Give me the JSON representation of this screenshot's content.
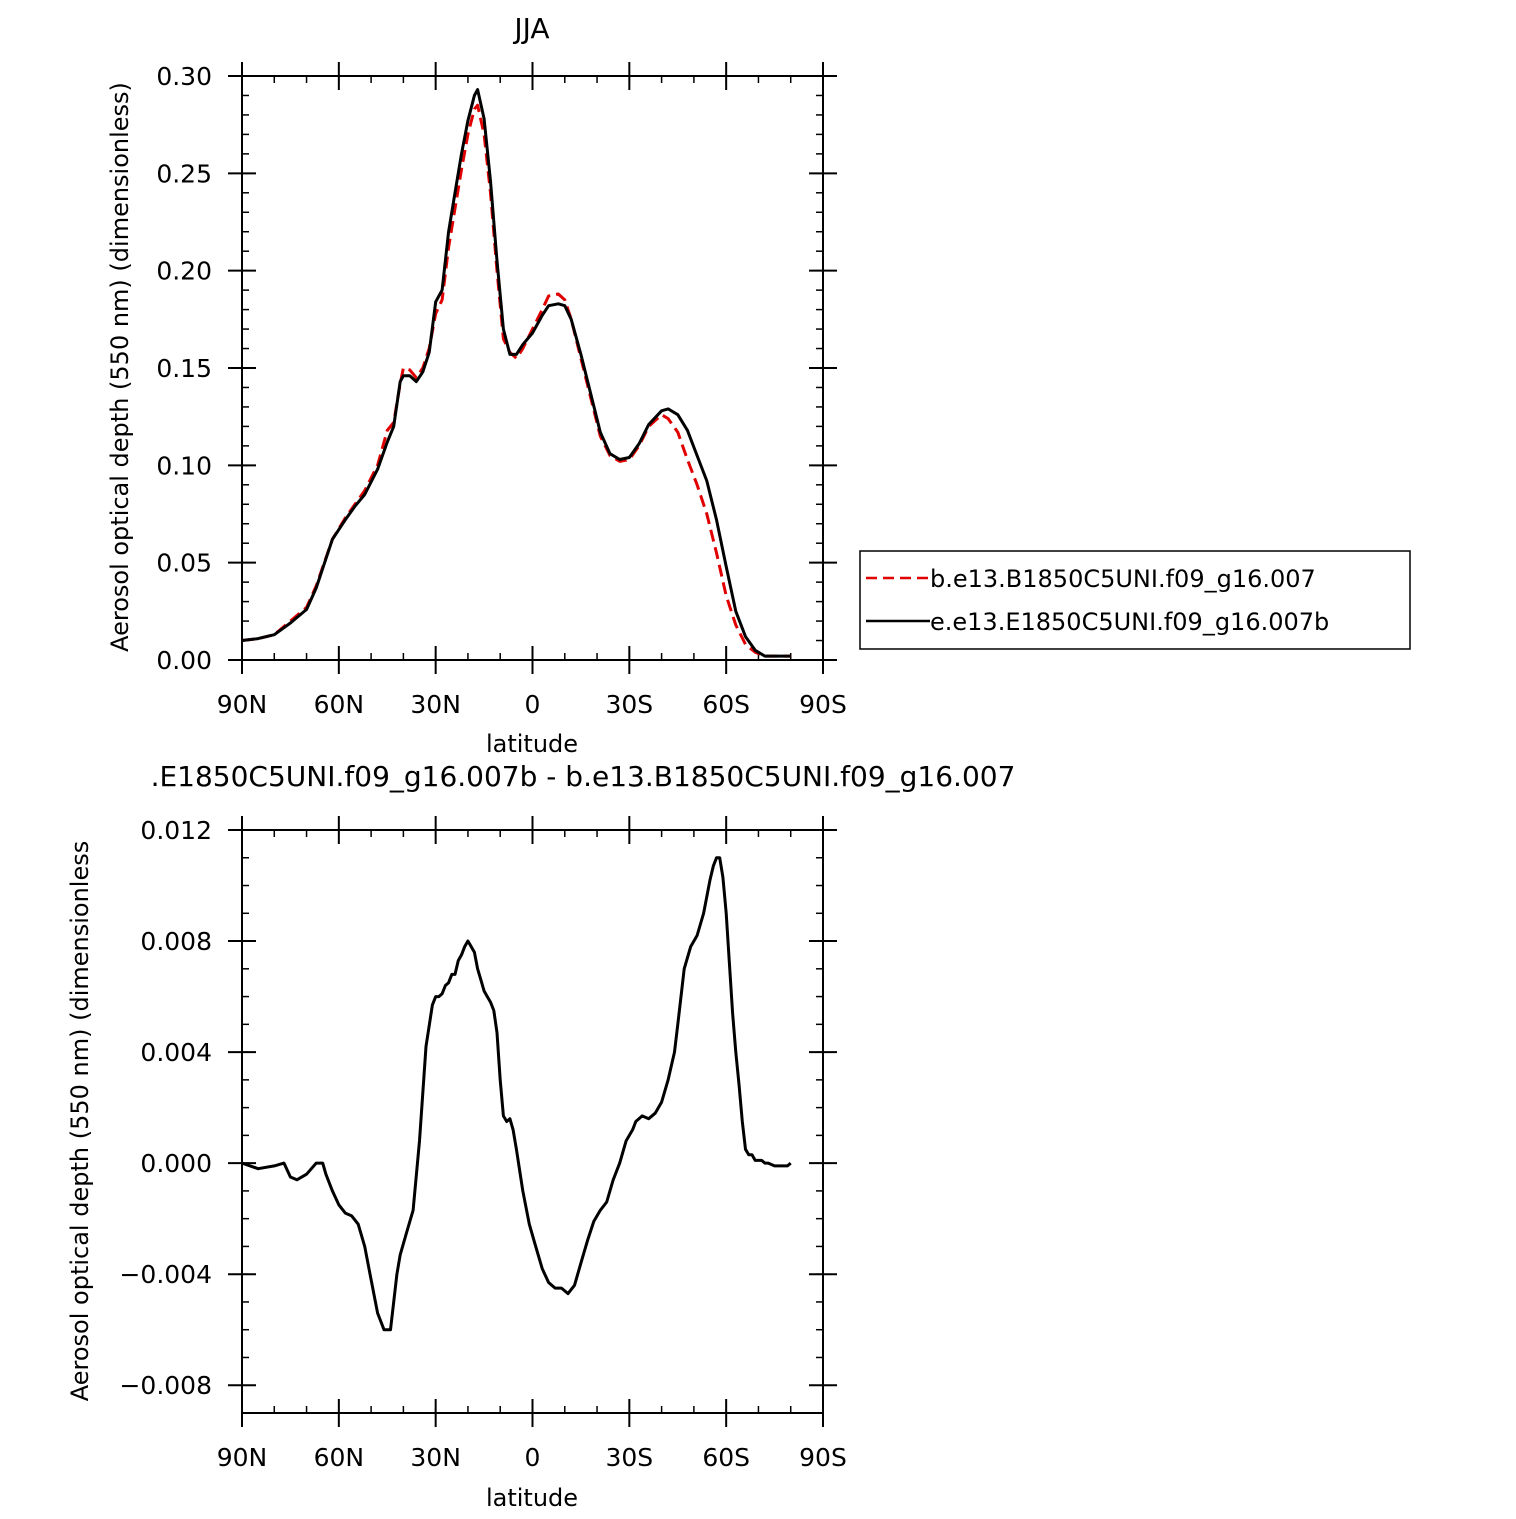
{
  "chart_data": [
    {
      "type": "line",
      "title": "JJA",
      "xlabel": "latitude",
      "ylabel": "Aerosol optical depth (550 nm) (dimensionless)",
      "xlim": [
        -90,
        90
      ],
      "ylim": [
        0,
        0.3
      ],
      "x_ticks": [
        -90,
        -60,
        -30,
        0,
        30,
        60,
        90
      ],
      "x_tick_labels": [
        "90N",
        "60N",
        "30N",
        "0",
        "30S",
        "60S",
        "90S"
      ],
      "y_ticks": [
        0,
        0.05,
        0.1,
        0.15,
        0.2,
        0.25,
        0.3
      ],
      "y_tick_labels": [
        "0.00",
        "0.05",
        "0.10",
        "0.15",
        "0.20",
        "0.25",
        "0.30"
      ],
      "legend_position": "right",
      "series": [
        {
          "name": "b.e13.B1850C5UNI.f09_g16.007",
          "color": "#e00000",
          "dash": "dashed",
          "x": [
            -90,
            -85,
            -80,
            -75,
            -70,
            -67,
            -62,
            -58,
            -55,
            -52,
            -48,
            -45,
            -43,
            -41,
            -40,
            -38,
            -36,
            -34,
            -32,
            -30,
            -28,
            -26,
            -24,
            -22,
            -20,
            -18,
            -17,
            -15,
            -13,
            -11,
            -9,
            -7,
            -5,
            -3,
            0,
            3,
            5,
            8,
            10,
            12,
            15,
            18,
            21,
            24,
            27,
            30,
            33,
            36,
            40,
            42,
            45,
            48,
            51,
            54,
            57,
            60,
            63,
            66,
            69,
            72,
            75,
            80
          ],
          "y": [
            0.01,
            0.011,
            0.013,
            0.02,
            0.027,
            0.038,
            0.062,
            0.073,
            0.08,
            0.087,
            0.1,
            0.118,
            0.122,
            0.142,
            0.15,
            0.149,
            0.145,
            0.15,
            0.16,
            0.178,
            0.185,
            0.212,
            0.232,
            0.252,
            0.27,
            0.283,
            0.285,
            0.27,
            0.24,
            0.2,
            0.165,
            0.158,
            0.155,
            0.16,
            0.17,
            0.18,
            0.187,
            0.188,
            0.185,
            0.175,
            0.155,
            0.135,
            0.115,
            0.105,
            0.102,
            0.103,
            0.11,
            0.12,
            0.126,
            0.124,
            0.117,
            0.103,
            0.09,
            0.075,
            0.055,
            0.033,
            0.018,
            0.008,
            0.004,
            0.002,
            0.002,
            0.002
          ]
        },
        {
          "name": "e.e13.E1850C5UNI.f09_g16.007b",
          "color": "#000000",
          "dash": "solid",
          "x": [
            -90,
            -85,
            -80,
            -75,
            -70,
            -67,
            -62,
            -58,
            -55,
            -52,
            -48,
            -45,
            -43,
            -41,
            -40,
            -38,
            -36,
            -34,
            -32,
            -30,
            -28,
            -26,
            -24,
            -22,
            -20,
            -18,
            -17,
            -15,
            -13,
            -11,
            -9,
            -7,
            -5,
            -3,
            0,
            3,
            5,
            8,
            10,
            12,
            15,
            18,
            21,
            24,
            27,
            30,
            33,
            36,
            40,
            42,
            45,
            48,
            51,
            54,
            57,
            60,
            63,
            66,
            69,
            72,
            75,
            80
          ],
          "y": [
            0.01,
            0.011,
            0.013,
            0.019,
            0.026,
            0.037,
            0.062,
            0.072,
            0.079,
            0.085,
            0.098,
            0.112,
            0.12,
            0.143,
            0.146,
            0.146,
            0.143,
            0.148,
            0.158,
            0.184,
            0.19,
            0.22,
            0.24,
            0.26,
            0.277,
            0.29,
            0.293,
            0.278,
            0.246,
            0.205,
            0.17,
            0.157,
            0.157,
            0.162,
            0.168,
            0.177,
            0.182,
            0.183,
            0.182,
            0.175,
            0.157,
            0.137,
            0.117,
            0.106,
            0.103,
            0.104,
            0.111,
            0.121,
            0.128,
            0.129,
            0.126,
            0.118,
            0.105,
            0.092,
            0.072,
            0.048,
            0.025,
            0.012,
            0.005,
            0.002,
            0.002,
            0.002
          ]
        }
      ]
    },
    {
      "type": "line",
      "title": ".E1850C5UNI.f09_g16.007b - b.e13.B1850C5UNI.f09_g16.007",
      "xlabel": "latitude",
      "ylabel": "Aerosol optical depth (550 nm) (dimensionless",
      "xlim": [
        -90,
        90
      ],
      "ylim": [
        -0.009,
        0.012
      ],
      "x_ticks": [
        -90,
        -60,
        -30,
        0,
        30,
        60,
        90
      ],
      "x_tick_labels": [
        "90N",
        "60N",
        "30N",
        "0",
        "30S",
        "60S",
        "90S"
      ],
      "y_ticks": [
        -0.008,
        -0.004,
        0.0,
        0.004,
        0.008,
        0.012
      ],
      "y_tick_labels": [
        "-0.008",
        "-0.004",
        "0.000",
        "0.004",
        "0.008",
        "0.012"
      ],
      "series": [
        {
          "color": "#000000",
          "dash": "solid",
          "x": [
            -90,
            -85,
            -80,
            -77,
            -75,
            -73,
            -70,
            -67,
            -65,
            -64,
            -62,
            -60,
            -58,
            -56,
            -54,
            -52,
            -50,
            -48,
            -46,
            -44,
            -43,
            -42,
            -41,
            -39,
            -37,
            -35,
            -33,
            -31,
            -30,
            -29,
            -28,
            -27,
            -26,
            -25,
            -24,
            -23,
            -22,
            -21,
            -20,
            -19,
            -18,
            -17,
            -16,
            -15,
            -14,
            -13,
            -12,
            -11,
            -10,
            -9,
            -8,
            -7,
            -6,
            -5,
            -3,
            -1,
            1,
            3,
            5,
            7,
            9,
            11,
            13,
            15,
            17,
            19,
            21,
            23,
            25,
            27,
            29,
            31,
            32,
            34,
            36,
            38,
            40,
            42,
            44,
            45,
            47,
            49,
            51,
            53,
            55,
            56,
            57,
            58,
            59,
            60,
            61,
            62,
            63,
            64,
            65,
            66,
            67,
            68,
            69,
            70,
            71,
            72,
            73,
            75,
            77,
            79,
            80
          ],
          "y": [
            0.0,
            -0.0002,
            -0.0001,
            0.0,
            -0.0005,
            -0.0006,
            -0.0004,
            0.0,
            0.0,
            -0.0004,
            -0.001,
            -0.0015,
            -0.0018,
            -0.0019,
            -0.0022,
            -0.003,
            -0.0042,
            -0.0054,
            -0.006,
            -0.006,
            -0.005,
            -0.004,
            -0.0033,
            -0.0025,
            -0.0017,
            0.0008,
            0.0042,
            0.0057,
            0.006,
            0.006,
            0.0061,
            0.0064,
            0.0065,
            0.0068,
            0.0068,
            0.0073,
            0.0075,
            0.0078,
            0.008,
            0.0078,
            0.0076,
            0.007,
            0.0066,
            0.0062,
            0.006,
            0.0058,
            0.0055,
            0.0047,
            0.003,
            0.0017,
            0.0015,
            0.0016,
            0.0012,
            0.0005,
            -0.001,
            -0.0022,
            -0.003,
            -0.0038,
            -0.0043,
            -0.0045,
            -0.0045,
            -0.0047,
            -0.0044,
            -0.0036,
            -0.0028,
            -0.0021,
            -0.0017,
            -0.0014,
            -0.0006,
            0.0,
            0.0008,
            0.0012,
            0.0015,
            0.0017,
            0.0016,
            0.0018,
            0.0022,
            0.003,
            0.004,
            0.005,
            0.007,
            0.0078,
            0.0082,
            0.009,
            0.0102,
            0.0107,
            0.011,
            0.011,
            0.0103,
            0.009,
            0.0072,
            0.0054,
            0.004,
            0.0028,
            0.0015,
            0.0005,
            0.0003,
            0.0003,
            0.0001,
            0.0001,
            0.0001,
            0.0,
            0.0,
            -0.0001,
            -0.0001,
            -0.0001,
            0.0
          ]
        }
      ]
    }
  ]
}
